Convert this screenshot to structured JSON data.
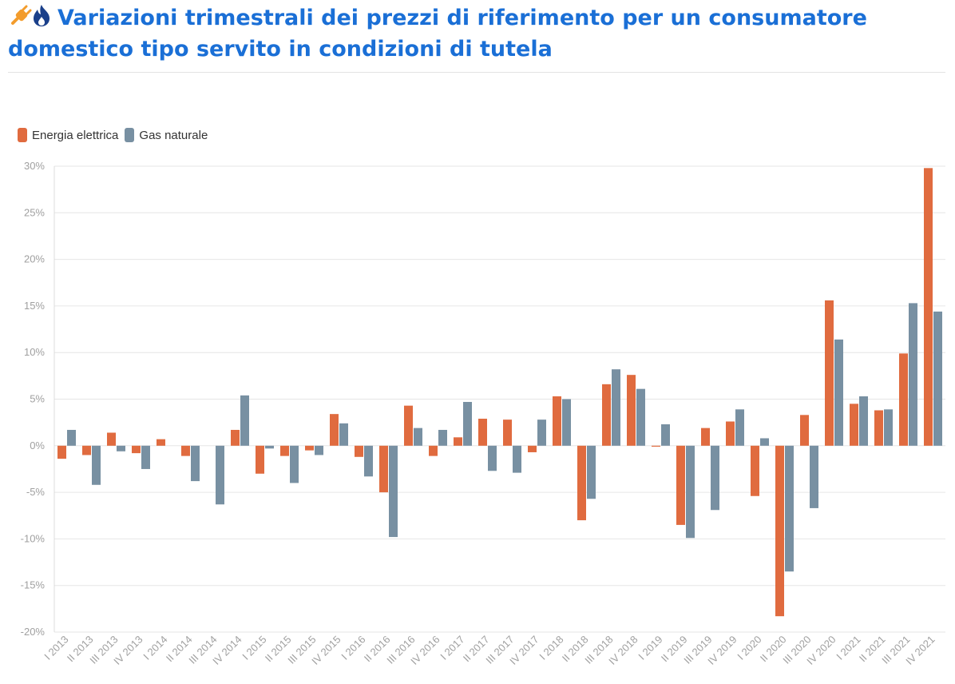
{
  "title": "Variazioni trimestrali dei prezzi di riferimento per un consumatore domestico tipo servito in condizioni di tutela",
  "title_icons": [
    "plug-icon",
    "flame-icon"
  ],
  "colors": {
    "title": "#1a6fd6",
    "energia": "#e06b3f",
    "gas": "#7890a2",
    "plug_icon": "#f39c2c",
    "flame_icon": "#1a3f8a"
  },
  "legend": [
    {
      "label": "Energia elettrica",
      "color": "#e06b3f"
    },
    {
      "label": "Gas naturale",
      "color": "#7890a2"
    }
  ],
  "chart_data": {
    "type": "bar",
    "categories": [
      "I 2013",
      "II 2013",
      "III 2013",
      "IV 2013",
      "I 2014",
      "II 2014",
      "III 2014",
      "IV 2014",
      "I 2015",
      "II 2015",
      "III 2015",
      "IV 2015",
      "I 2016",
      "II 2016",
      "III 2016",
      "IV 2016",
      "I 2017",
      "II 2017",
      "III 2017",
      "IV 2017",
      "I 2018",
      "II 2018",
      "III 2018",
      "IV 2018",
      "I 2019",
      "II 2019",
      "III 2019",
      "IV 2019",
      "I 2020",
      "II 2020",
      "III 2020",
      "IV 2020",
      "I 2021",
      "II 2021",
      "III 2021",
      "IV 2021"
    ],
    "series": [
      {
        "name": "Energia elettrica",
        "color": "#e06b3f",
        "values": [
          -1.4,
          -1.0,
          1.4,
          -0.8,
          0.7,
          -1.1,
          0,
          1.7,
          -3.0,
          -1.1,
          -0.5,
          3.4,
          -1.2,
          -5.0,
          4.3,
          -1.1,
          0.9,
          2.9,
          2.8,
          -0.7,
          5.3,
          -8.0,
          6.6,
          7.6,
          -0.1,
          -8.5,
          1.9,
          2.6,
          -5.4,
          -18.3,
          3.3,
          15.6,
          4.5,
          3.8,
          9.9,
          29.8
        ]
      },
      {
        "name": "Gas naturale",
        "color": "#7890a2",
        "values": [
          1.7,
          -4.2,
          -0.6,
          -2.5,
          0,
          -3.8,
          -6.3,
          5.4,
          -0.3,
          -4.0,
          -1.0,
          2.4,
          -3.3,
          -9.8,
          1.9,
          1.7,
          4.7,
          -2.7,
          -2.9,
          2.8,
          5.0,
          -5.7,
          8.2,
          6.1,
          2.3,
          -9.9,
          -6.9,
          3.9,
          0.8,
          -13.5,
          -6.7,
          11.4,
          5.3,
          3.9,
          15.3,
          14.4
        ]
      }
    ],
    "yticks": [
      "30%",
      "25%",
      "20%",
      "15%",
      "10%",
      "5%",
      "0%",
      "-5%",
      "-10%",
      "-15%",
      "-20%"
    ],
    "ylim": [
      -20,
      30
    ],
    "grid": true,
    "legend_position": "top-left"
  }
}
